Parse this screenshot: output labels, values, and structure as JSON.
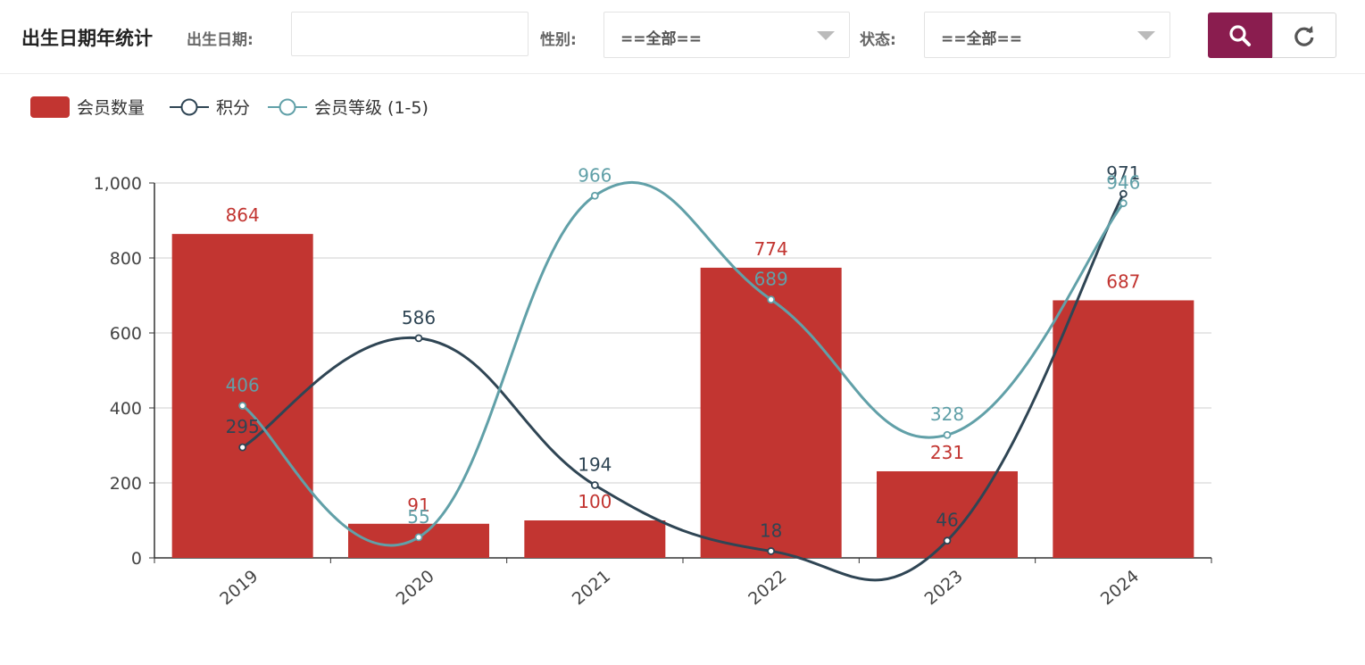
{
  "header": {
    "title": "出生日期年统计",
    "birth_date_label": "出生日期:",
    "birth_date_value": "",
    "gender_label": "性别:",
    "gender_value": "==全部==",
    "status_label": "状态:",
    "status_value": "==全部=="
  },
  "icons": {
    "search": "search-icon",
    "reset": "refresh-icon"
  },
  "colors": {
    "accent": "#8a1d4f",
    "bar": "#c23531",
    "line_score": "#2f4554",
    "line_level": "#61a0a8"
  },
  "chart_data": {
    "type": "bar",
    "categories": [
      "2019",
      "2020",
      "2021",
      "2022",
      "2023",
      "2024"
    ],
    "series": [
      {
        "name": "会员数量",
        "type": "bar",
        "values": [
          864,
          91,
          100,
          774,
          231,
          687
        ]
      },
      {
        "name": "积分",
        "type": "line",
        "smooth": true,
        "values": [
          295,
          586,
          194,
          18,
          46,
          971
        ]
      },
      {
        "name": "会员等级 (1-5)",
        "type": "line",
        "smooth": true,
        "values": [
          406,
          55,
          966,
          689,
          328,
          946
        ]
      }
    ],
    "ylim": [
      0,
      1000
    ],
    "yticks": [
      "0",
      "200",
      "400",
      "600",
      "800",
      "1,000"
    ],
    "grid": true,
    "legend": "top-left"
  }
}
